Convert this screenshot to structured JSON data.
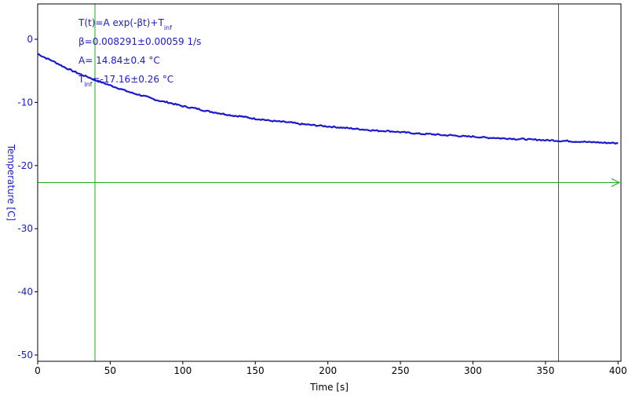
{
  "chart_data": {
    "type": "line",
    "xlabel": "Time [s]",
    "ylabel": "Temperature [C]",
    "xlim": [
      0,
      402
    ],
    "ylim": [
      -51,
      5.6
    ],
    "x_ticks": [
      0,
      50,
      100,
      150,
      200,
      250,
      300,
      350,
      400
    ],
    "y_ticks": [
      0,
      -10,
      -20,
      -30,
      -40,
      -50
    ],
    "grid": false,
    "series": [
      {
        "color": "#1a1acc",
        "x": [
          0,
          5,
          10,
          15,
          20,
          25,
          30,
          35,
          40,
          45,
          50,
          55,
          60,
          65,
          70,
          75,
          80,
          85,
          90,
          95,
          100,
          105,
          110,
          115,
          120,
          125,
          130,
          135,
          140,
          145,
          150,
          155,
          160,
          165,
          170,
          175,
          180,
          185,
          190,
          195,
          200,
          205,
          210,
          215,
          220,
          225,
          230,
          235,
          240,
          245,
          250,
          255,
          260,
          265,
          270,
          275,
          280,
          285,
          290,
          295,
          300,
          305,
          310,
          315,
          320,
          325,
          330,
          335,
          340,
          345,
          350,
          355,
          360,
          365,
          370,
          375,
          380,
          385,
          390,
          395,
          400
        ],
        "y": [
          -2.3,
          -2.9,
          -3.4,
          -4.0,
          -4.6,
          -5.1,
          -5.6,
          -6.0,
          -6.5,
          -6.9,
          -7.3,
          -7.7,
          -8.1,
          -8.5,
          -8.8,
          -9.1,
          -9.5,
          -9.8,
          -10.0,
          -10.3,
          -10.6,
          -10.8,
          -11.0,
          -11.3,
          -11.5,
          -11.7,
          -11.9,
          -12.1,
          -12.2,
          -12.4,
          -12.6,
          -12.7,
          -12.9,
          -13.0,
          -13.1,
          -13.2,
          -13.4,
          -13.5,
          -13.6,
          -13.7,
          -13.8,
          -13.9,
          -14.0,
          -14.1,
          -14.2,
          -14.3,
          -14.4,
          -14.5,
          -14.5,
          -14.6,
          -14.7,
          -14.8,
          -14.9,
          -15.0,
          -15.0,
          -15.1,
          -15.2,
          -15.2,
          -15.3,
          -15.4,
          -15.4,
          -15.5,
          -15.6,
          -15.6,
          -15.7,
          -15.7,
          -15.8,
          -15.8,
          -15.9,
          -15.9,
          -16.0,
          -16.0,
          -16.1,
          -16.1,
          -16.2,
          -16.2,
          -16.3,
          -16.3,
          -16.4,
          -16.4,
          -16.5
        ]
      }
    ],
    "annotations": [
      "T(t)=A exp(-βt)+T",
      "inf",
      "β=0.008291±0.00059 1/s",
      "A= 14.84±0.4 °C",
      "T",
      "inf",
      "=-17.16±0.26 °C"
    ],
    "cursors": {
      "vertical_green_x": 39.5,
      "vertical_red_x": 359,
      "horizontal_green_y": -22.7
    },
    "colors": {
      "axis_text": "#1a1acc",
      "frame": "#000000",
      "cursor_green": "#1aaa1a",
      "cursor_red": "#cc1a1a"
    }
  }
}
